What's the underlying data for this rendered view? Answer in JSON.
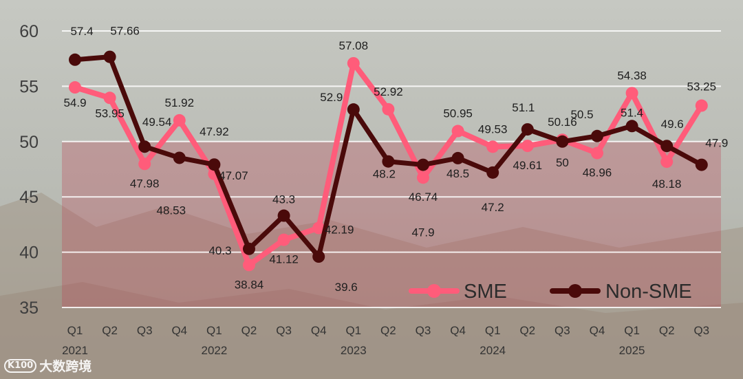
{
  "watermark": {
    "logo": "K100",
    "text": "大数跨境"
  },
  "colors": {
    "sme": "#ff5c7a",
    "non_sme": "#4a0a0a",
    "band": "#c0394a"
  },
  "chart_data": {
    "type": "line",
    "title": "",
    "xlabel": "",
    "ylabel": "",
    "ylim": [
      35,
      60
    ],
    "yticks": [
      35,
      40,
      45,
      50,
      55,
      60
    ],
    "grid": true,
    "legend_position": "bottom-right",
    "band": {
      "from": 35,
      "to": 50
    },
    "x_quarters": [
      "Q1",
      "Q2",
      "Q3",
      "Q4",
      "Q1",
      "Q2",
      "Q3",
      "Q4",
      "Q1",
      "Q2",
      "Q3",
      "Q4",
      "Q1",
      "Q2",
      "Q3",
      "Q4",
      "Q1",
      "Q2",
      "Q3"
    ],
    "x_years": [
      {
        "label": "2021",
        "index": 0
      },
      {
        "label": "2022",
        "index": 4
      },
      {
        "label": "2023",
        "index": 8
      },
      {
        "label": "2024",
        "index": 12
      },
      {
        "label": "2025",
        "index": 16
      }
    ],
    "series": [
      {
        "name": "SME",
        "values": [
          54.9,
          53.95,
          47.98,
          51.92,
          47.07,
          38.84,
          41.12,
          42.19,
          57.08,
          52.92,
          46.74,
          50.95,
          49.53,
          49.61,
          50.16,
          48.96,
          54.38,
          48.18,
          53.25
        ],
        "labels": [
          "54.9",
          "53.95",
          "47.98",
          "51.92",
          "47.07",
          "38.84",
          "41.12",
          "42.19",
          "57.08",
          "52.92",
          "46.74",
          "50.95",
          "49.53",
          "49.61",
          "50.16",
          "48.96",
          "54.38",
          "48.18",
          "53.25"
        ]
      },
      {
        "name": "Non-SME",
        "values": [
          57.4,
          57.66,
          49.54,
          48.53,
          47.92,
          40.3,
          43.3,
          39.6,
          52.9,
          48.2,
          47.9,
          48.5,
          47.2,
          51.1,
          50,
          50.5,
          51.4,
          49.6,
          47.9
        ],
        "labels": [
          "57.4",
          "57.66",
          "49.54",
          "48.53",
          "47.92",
          "40.3",
          "43.3",
          "39.6",
          "52.9",
          "48.2",
          "47.9",
          "48.5",
          "47.2",
          "51.1",
          "50",
          "50.5",
          "51.4",
          "49.6",
          "47.9"
        ]
      }
    ]
  }
}
